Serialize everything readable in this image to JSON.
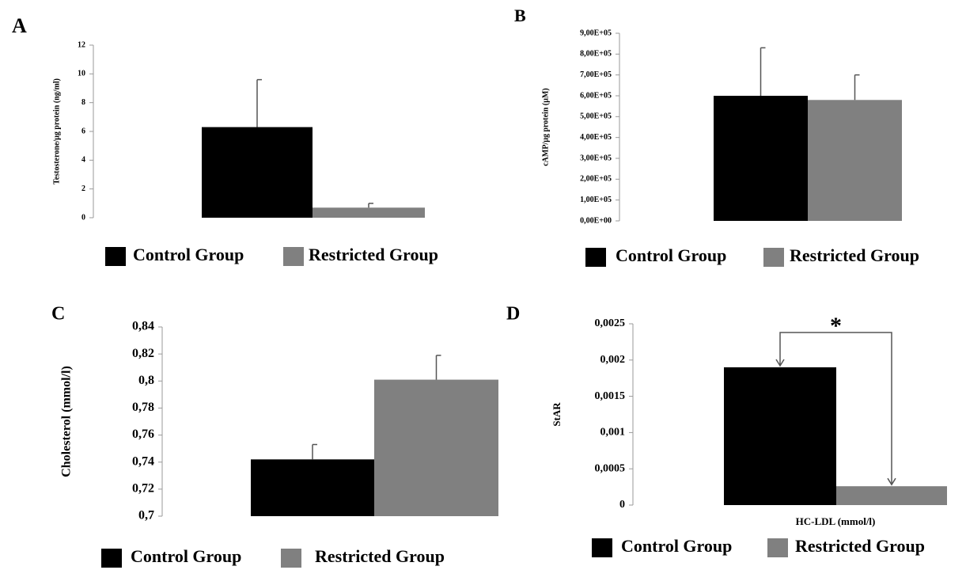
{
  "chart_data": [
    {
      "type": "bar",
      "panel": "A",
      "ylabel": "Testosterone/µg protein (ng/ml)",
      "ylim": [
        0,
        12
      ],
      "yticks": [
        0,
        2,
        4,
        6,
        8,
        10,
        12
      ],
      "series": [
        {
          "name": "Control Group",
          "color": "#000000",
          "values": [
            6.3
          ],
          "errors": [
            3.3
          ]
        },
        {
          "name": "Restricted Group",
          "color": "#808080",
          "values": [
            0.7
          ],
          "errors": [
            0.3
          ]
        }
      ]
    },
    {
      "type": "bar",
      "panel": "B",
      "ylabel": "cAMP/µg protein (µM)",
      "ylim": [
        0,
        900000
      ],
      "yticks": [
        {
          "value": 0,
          "label": "0,00E+00"
        },
        {
          "value": 100000,
          "label": "1,00E+05"
        },
        {
          "value": 200000,
          "label": "2,00E+05"
        },
        {
          "value": 300000,
          "label": "3,00E+05"
        },
        {
          "value": 400000,
          "label": "4,00E+05"
        },
        {
          "value": 500000,
          "label": "5,00E+05"
        },
        {
          "value": 600000,
          "label": "6,00E+05"
        },
        {
          "value": 700000,
          "label": "7,00E+05"
        },
        {
          "value": 800000,
          "label": "8,00E+05"
        },
        {
          "value": 900000,
          "label": "9,00E+05"
        }
      ],
      "series": [
        {
          "name": "Control Group",
          "color": "#000000",
          "values": [
            600000
          ],
          "errors": [
            230000
          ]
        },
        {
          "name": "Restricted Group",
          "color": "#808080",
          "values": [
            580000
          ],
          "errors": [
            120000
          ]
        }
      ]
    },
    {
      "type": "bar",
      "panel": "C",
      "ylabel": "Cholesterol (mmol/l)",
      "ylim": [
        0.7,
        0.84
      ],
      "yticks": [
        {
          "value": 0.7,
          "label": "0,7"
        },
        {
          "value": 0.72,
          "label": "0,72"
        },
        {
          "value": 0.74,
          "label": "0,74"
        },
        {
          "value": 0.76,
          "label": "0,76"
        },
        {
          "value": 0.78,
          "label": "0,78"
        },
        {
          "value": 0.8,
          "label": "0,8"
        },
        {
          "value": 0.82,
          "label": "0,82"
        },
        {
          "value": 0.84,
          "label": "0,84"
        }
      ],
      "series": [
        {
          "name": "Control Group",
          "color": "#000000",
          "values": [
            0.742
          ],
          "errors": [
            0.011
          ]
        },
        {
          "name": "Restricted Group",
          "color": "#808080",
          "values": [
            0.801
          ],
          "errors": [
            0.018
          ]
        }
      ]
    },
    {
      "type": "bar",
      "panel": "D",
      "ylabel": "StAR",
      "xlabel": "HC-LDL (mmol/l)",
      "annotation": "*",
      "ylim": [
        0,
        0.0025
      ],
      "yticks": [
        0,
        {
          "value": 0.0005,
          "label": "0,0005"
        },
        {
          "value": 0.001,
          "label": "0,001"
        },
        {
          "value": 0.0015,
          "label": "0,0015"
        },
        {
          "value": 0.002,
          "label": "0,002"
        },
        {
          "value": 0.0025,
          "label": "0,0025"
        }
      ],
      "series": [
        {
          "name": "Control Group",
          "color": "#000000",
          "values": [
            0.0019
          ]
        },
        {
          "name": "Restricted Group",
          "color": "#808080",
          "values": [
            0.00026
          ]
        }
      ]
    }
  ]
}
